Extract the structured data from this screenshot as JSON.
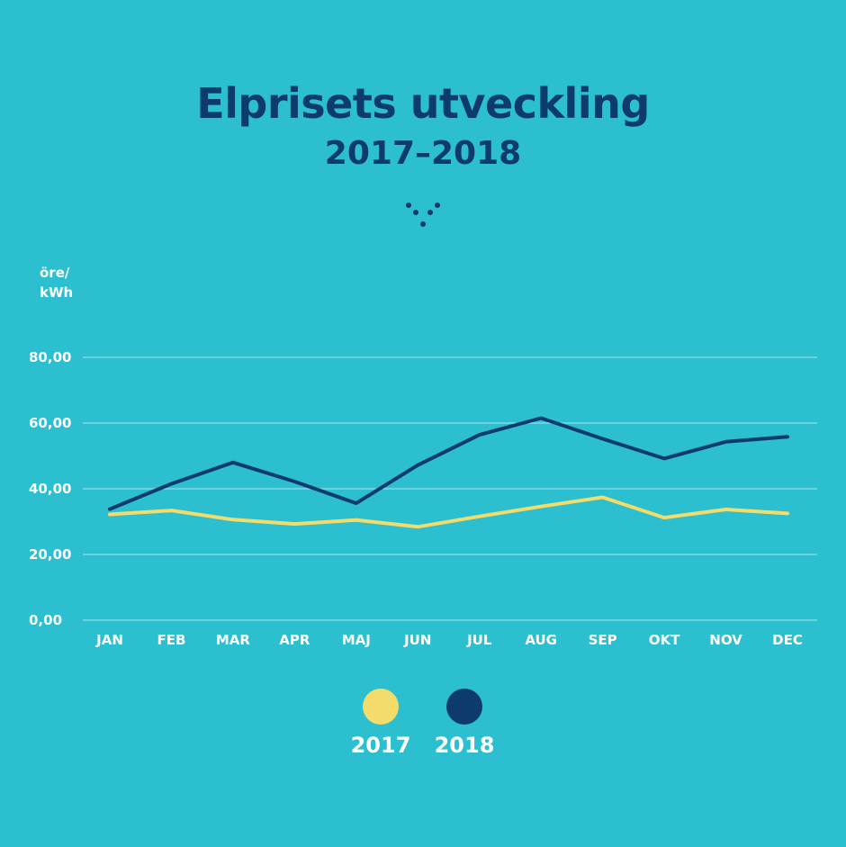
{
  "header": {
    "title": "Elprisets utveckling",
    "subtitle": "2017–2018"
  },
  "colors": {
    "background": "#2bbfd0",
    "title": "#0e3b6e",
    "series_2017": "#f3dc6a",
    "series_2018": "#0e3b6e",
    "grid": "#a8e6ee",
    "text": "#ffffff"
  },
  "chart_data": {
    "type": "line",
    "ylabel": "öre/ kWh",
    "ylabel_lines": [
      "öre/",
      "kWh"
    ],
    "categories": [
      "JAN",
      "FEB",
      "MAR",
      "APR",
      "MAJ",
      "JUN",
      "JUL",
      "AUG",
      "SEP",
      "OKT",
      "NOV",
      "DEC"
    ],
    "y_ticks": [
      0,
      20,
      40,
      60,
      80
    ],
    "y_tick_labels": [
      "0,00",
      "20,00",
      "40,00",
      "60,00",
      "80,00"
    ],
    "ylim": [
      0,
      80
    ],
    "grid": true,
    "legend_position": "bottom-center",
    "series": [
      {
        "name": "2017",
        "values": [
          32.2,
          33.4,
          30.6,
          29.3,
          30.5,
          28.4,
          31.6,
          34.6,
          37.4,
          31.2,
          33.7,
          32.5
        ]
      },
      {
        "name": "2018",
        "values": [
          33.8,
          41.5,
          48.0,
          42.2,
          35.6,
          47.2,
          56.4,
          61.5,
          55.2,
          49.2,
          54.3,
          55.8
        ]
      }
    ]
  }
}
